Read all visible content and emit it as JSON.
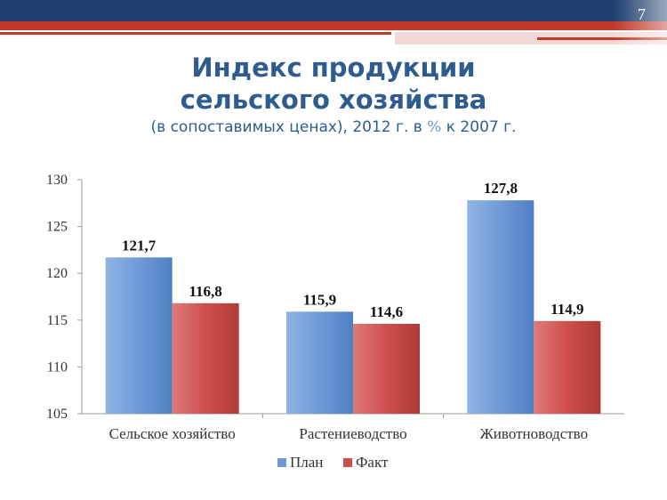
{
  "page_number": "7",
  "title": {
    "line1": "Индекс продукции",
    "line2": "сельского хозяйства",
    "subtitle_pre": "(в сопоставимых ценах), 2012 г. в ",
    "subtitle_pct": "%",
    "subtitle_post": " к 2007 г."
  },
  "colors": {
    "band_blue": "#1f3f6e",
    "band_red": "#c0392b",
    "title": "#2f5c8f",
    "plan": "#6e9ad6",
    "fact": "#cd4f4d"
  },
  "chart_data": {
    "type": "bar",
    "categories": [
      "Сельское хозяйство",
      "Растениеводство",
      "Животноводство"
    ],
    "series": [
      {
        "name": "План",
        "values": [
          121.7,
          115.9,
          127.8
        ],
        "labels": [
          "121,7",
          "115,9",
          "127,8"
        ],
        "color": "#6e9ad6"
      },
      {
        "name": "Факт",
        "values": [
          116.8,
          114.6,
          114.9
        ],
        "labels": [
          "116,8",
          "114,6",
          "114,9"
        ],
        "color": "#cd4f4d"
      }
    ],
    "ylim": [
      105,
      130
    ],
    "yticks": [
      "105",
      "110",
      "115",
      "120",
      "125",
      "130"
    ],
    "ytick_values": [
      105,
      110,
      115,
      120,
      125,
      130
    ],
    "grid": false,
    "legend": "bottom"
  }
}
